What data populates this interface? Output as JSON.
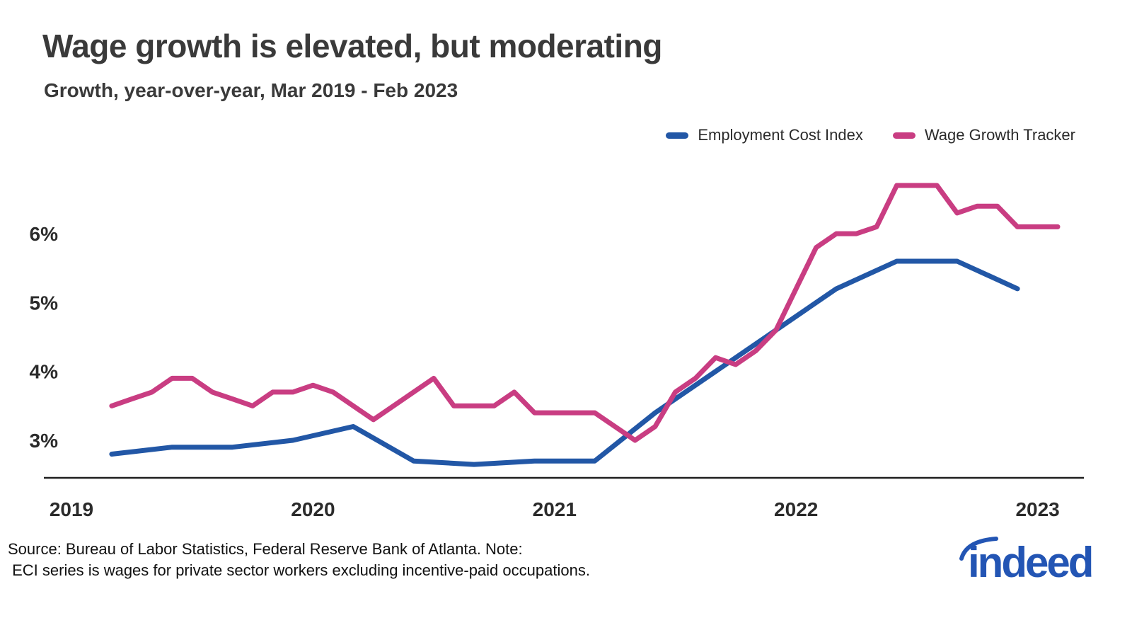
{
  "header": {
    "title": "Wage growth is elevated, but moderating",
    "subtitle": "Growth, year-over-year, Mar 2019 - Feb 2023"
  },
  "chart_data": {
    "type": "line",
    "title": "Wage growth is elevated, but moderating",
    "subtitle": "Growth, year-over-year, Mar 2019 - Feb 2023",
    "xlabel": "",
    "ylabel": "",
    "grid": false,
    "legend_position": "top-right",
    "x_unit": "months since Jan 2019",
    "xlim_months": [
      0,
      49
    ],
    "ylim": [
      2.5,
      7.0
    ],
    "y_ticks": [
      {
        "label": "3%",
        "value": 3
      },
      {
        "label": "4%",
        "value": 4
      },
      {
        "label": "5%",
        "value": 5
      },
      {
        "label": "6%",
        "value": 6
      }
    ],
    "x_ticks": [
      {
        "label": "2019",
        "month": 0
      },
      {
        "label": "2020",
        "month": 12
      },
      {
        "label": "2021",
        "month": 24
      },
      {
        "label": "2022",
        "month": 36
      },
      {
        "label": "2023",
        "month": 48
      }
    ],
    "series": [
      {
        "id": "eci",
        "name": "Employment Cost Index",
        "color": "#2257a6",
        "frequency": "quarterly",
        "x": [
          2,
          5,
          8,
          11,
          14,
          17,
          20,
          23,
          26,
          29,
          32,
          35,
          38,
          41,
          44,
          47
        ],
        "values": [
          2.8,
          2.9,
          2.9,
          3.0,
          3.2,
          2.7,
          2.65,
          2.7,
          2.7,
          3.4,
          4.0,
          4.6,
          5.2,
          5.6,
          5.6,
          5.2
        ]
      },
      {
        "id": "wgt",
        "name": "Wage Growth Tracker",
        "color": "#c93d82",
        "frequency": "monthly",
        "x": [
          2,
          3,
          4,
          5,
          6,
          7,
          8,
          9,
          10,
          11,
          12,
          13,
          14,
          15,
          16,
          17,
          18,
          19,
          20,
          21,
          22,
          23,
          24,
          25,
          26,
          27,
          28,
          29,
          30,
          31,
          32,
          33,
          34,
          35,
          36,
          37,
          38,
          39,
          40,
          41,
          42,
          43,
          44,
          45,
          46,
          47,
          48,
          49
        ],
        "values": [
          3.5,
          3.6,
          3.7,
          3.9,
          3.9,
          3.7,
          3.6,
          3.5,
          3.7,
          3.7,
          3.8,
          3.7,
          3.5,
          3.3,
          3.5,
          3.7,
          3.9,
          3.5,
          3.5,
          3.5,
          3.7,
          3.4,
          3.4,
          3.4,
          3.4,
          3.2,
          3.0,
          3.2,
          3.7,
          3.9,
          4.2,
          4.1,
          4.3,
          4.6,
          5.2,
          5.8,
          6.0,
          6.0,
          6.1,
          6.7,
          6.7,
          6.7,
          6.3,
          6.4,
          6.4,
          6.1,
          6.1,
          6.1
        ]
      }
    ]
  },
  "footer": {
    "source_line1": "Source: Bureau of Labor Statistics, Federal Reserve Bank of Atlanta. Note:",
    "source_line2": " ECI series is wages for private sector workers excluding incentive-paid occupations.",
    "logo_text": "indeed",
    "logo_color": "#2355b4"
  }
}
